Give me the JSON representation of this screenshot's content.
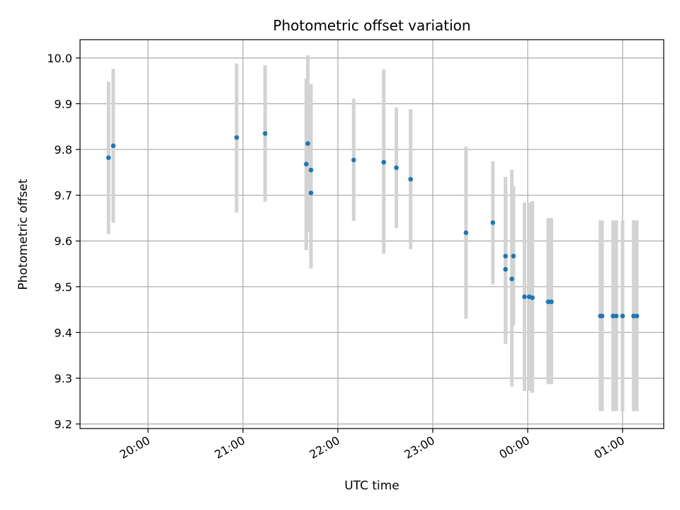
{
  "chart_data": {
    "type": "scatter",
    "title": "Photometric offset variation",
    "xlabel": "UTC time",
    "ylabel": "Photometric offset",
    "x_axis_type": "time",
    "xlim": [
      "19:17",
      "01:26"
    ],
    "ylim": [
      9.19,
      10.04
    ],
    "x_ticks": [
      "20:00",
      "21:00",
      "22:00",
      "23:00",
      "00:00",
      "01:00"
    ],
    "y_ticks": [
      9.2,
      9.3,
      9.4,
      9.5,
      9.6,
      9.7,
      9.8,
      9.9,
      10.0
    ],
    "grid": true,
    "colors": {
      "point": "#1f77b4",
      "errorbar": "#d3d3d3",
      "grid": "#b0b0b0"
    },
    "points": [
      {
        "t": "19:35",
        "y": 9.782,
        "low": 9.615,
        "high": 9.948
      },
      {
        "t": "19:38",
        "y": 9.808,
        "low": 9.64,
        "high": 9.976
      },
      {
        "t": "20:56",
        "y": 9.826,
        "low": 9.662,
        "high": 9.988
      },
      {
        "t": "21:14",
        "y": 9.835,
        "low": 9.686,
        "high": 9.984
      },
      {
        "t": "21:40",
        "y": 9.768,
        "low": 9.58,
        "high": 9.955
      },
      {
        "t": "21:41",
        "y": 9.813,
        "low": 9.62,
        "high": 10.006
      },
      {
        "t": "21:43",
        "y": 9.705,
        "low": 9.54,
        "high": 9.87
      },
      {
        "t": "21:43",
        "y": 9.755,
        "low": 9.568,
        "high": 9.943
      },
      {
        "t": "22:10",
        "y": 9.777,
        "low": 9.644,
        "high": 9.911
      },
      {
        "t": "22:29",
        "y": 9.772,
        "low": 9.572,
        "high": 9.975
      },
      {
        "t": "22:37",
        "y": 9.76,
        "low": 9.628,
        "high": 9.892
      },
      {
        "t": "22:46",
        "y": 9.735,
        "low": 9.582,
        "high": 9.888
      },
      {
        "t": "23:21",
        "y": 9.618,
        "low": 9.43,
        "high": 9.806
      },
      {
        "t": "23:38",
        "y": 9.64,
        "low": 9.505,
        "high": 9.774
      },
      {
        "t": "23:46",
        "y": 9.538,
        "low": 9.375,
        "high": 9.7
      },
      {
        "t": "23:46",
        "y": 9.567,
        "low": 9.395,
        "high": 9.74
      },
      {
        "t": "23:50",
        "y": 9.517,
        "low": 9.282,
        "high": 9.756
      },
      {
        "t": "23:51",
        "y": 9.567,
        "low": 9.415,
        "high": 9.72
      },
      {
        "t": "23:58",
        "y": 9.478,
        "low": 9.272,
        "high": 9.684
      },
      {
        "t": "00:01",
        "y": 9.478,
        "low": 9.272,
        "high": 9.684
      },
      {
        "t": "00:03",
        "y": 9.476,
        "low": 9.268,
        "high": 9.687
      },
      {
        "t": "00:13",
        "y": 9.467,
        "low": 9.287,
        "high": 9.65
      },
      {
        "t": "00:15",
        "y": 9.467,
        "low": 9.287,
        "high": 9.65
      },
      {
        "t": "00:46",
        "y": 9.436,
        "low": 9.228,
        "high": 9.645
      },
      {
        "t": "00:47",
        "y": 9.436,
        "low": 9.228,
        "high": 9.645
      },
      {
        "t": "00:54",
        "y": 9.436,
        "low": 9.228,
        "high": 9.645
      },
      {
        "t": "00:56",
        "y": 9.436,
        "low": 9.228,
        "high": 9.645
      },
      {
        "t": "01:00",
        "y": 9.436,
        "low": 9.228,
        "high": 9.645
      },
      {
        "t": "01:07",
        "y": 9.436,
        "low": 9.228,
        "high": 9.645
      },
      {
        "t": "01:09",
        "y": 9.436,
        "low": 9.228,
        "high": 9.645
      }
    ]
  }
}
